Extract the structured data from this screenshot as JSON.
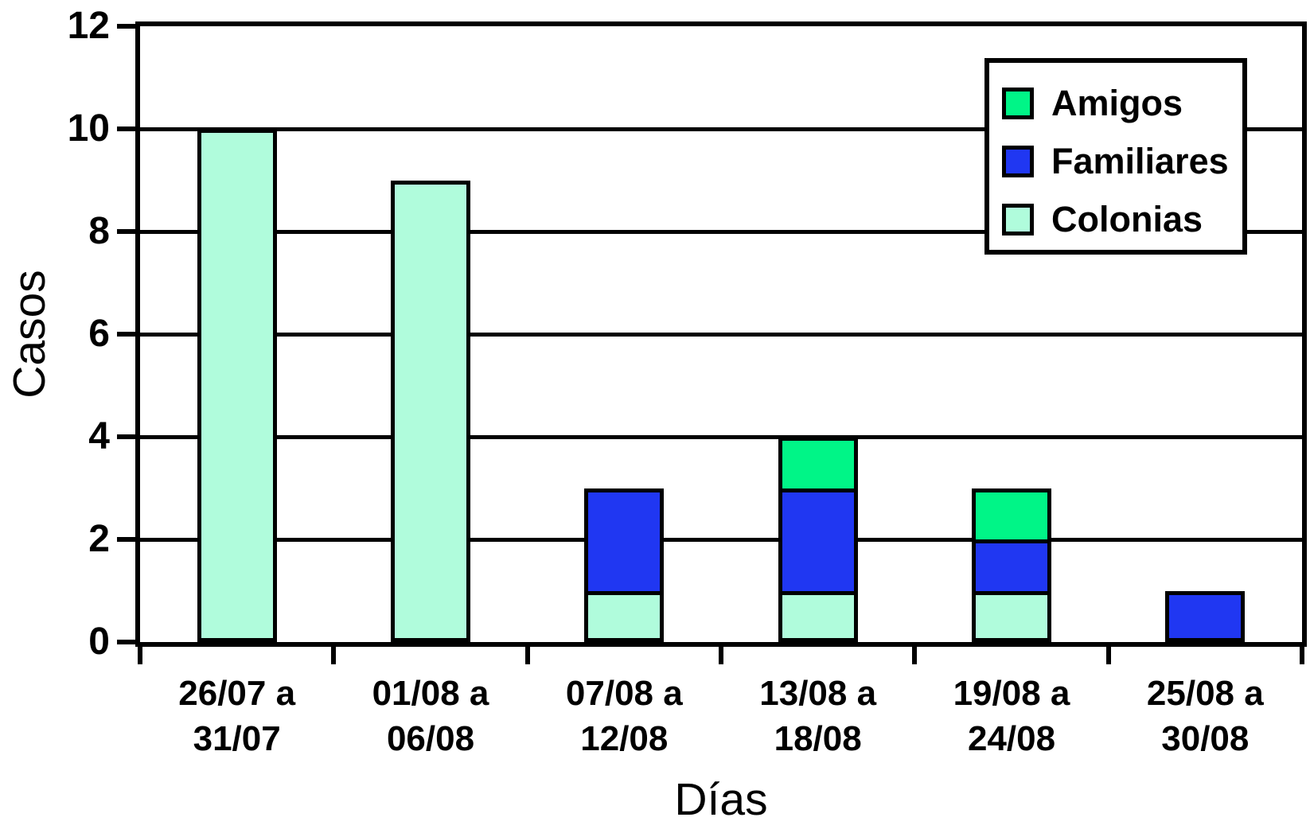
{
  "chart_data": {
    "type": "bar",
    "stacked": true,
    "xlabel": "Días",
    "ylabel": "Casos",
    "ylim": [
      0,
      12
    ],
    "yticks": [
      0,
      2,
      4,
      6,
      8,
      10,
      12
    ],
    "grid": "horizontal",
    "legend_position": "top-right",
    "axis_color": "#000000",
    "categories": [
      "26/07 a 31/07",
      "01/08 a 06/08",
      "07/08 a 12/08",
      "13/08 a 18/08",
      "19/08 a 24/08",
      "25/08 a 30/08"
    ],
    "category_label_lines": [
      [
        "26/07 a",
        "31/07"
      ],
      [
        "01/08 a",
        "06/08"
      ],
      [
        "07/08 a",
        "12/08"
      ],
      [
        "13/08 a",
        "18/08"
      ],
      [
        "19/08 a",
        "24/08"
      ],
      [
        "25/08 a",
        "30/08"
      ]
    ],
    "series": [
      {
        "name": "Colonias",
        "color": "#B0FCDC",
        "values": [
          10,
          9,
          1,
          1,
          1,
          0
        ]
      },
      {
        "name": "Familiares",
        "color": "#2037F2",
        "values": [
          0,
          0,
          2,
          2,
          1,
          1
        ]
      },
      {
        "name": "Amigos",
        "color": "#00F587",
        "values": [
          0,
          0,
          0,
          1,
          1,
          0
        ]
      }
    ],
    "legend": [
      {
        "label": "Amigos",
        "color": "#00F587"
      },
      {
        "label": "Familiares",
        "color": "#2037F2"
      },
      {
        "label": "Colonias",
        "color": "#B0FCDC"
      }
    ]
  }
}
